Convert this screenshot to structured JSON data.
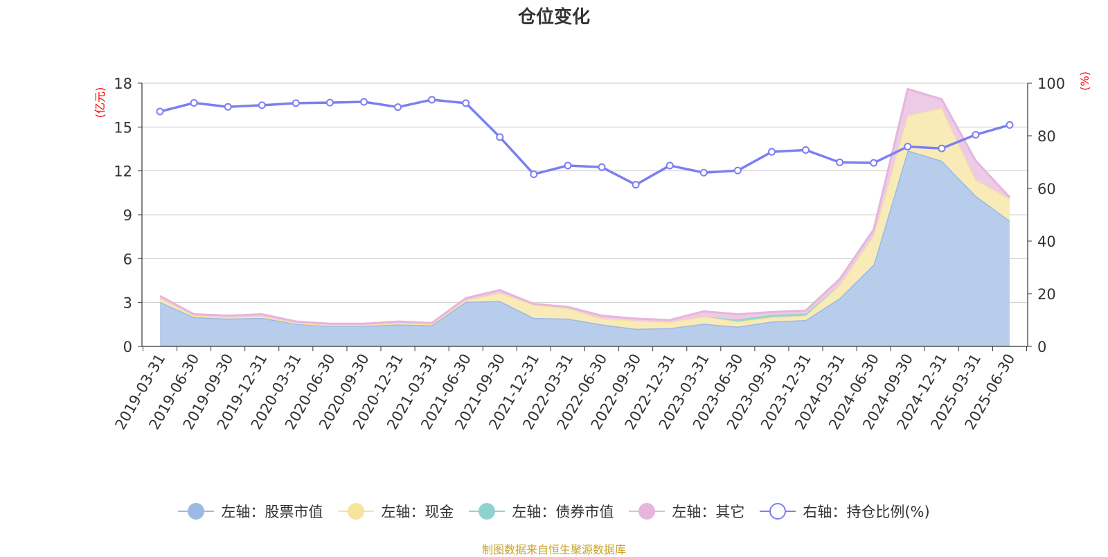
{
  "title": "仓位变化",
  "source_note": "制图数据来自恒生聚源数据库",
  "colors": {
    "stock": "#9cb9e3",
    "stock_fill": "#b7cdeb",
    "cash": "#f6e39c",
    "cash_fill": "#f8ebb8",
    "bond": "#8fd3d1",
    "other": "#e7b5dc",
    "other_fill": "#edcae6",
    "ratio": "#7b7ff0",
    "axis_label": "#ff0000",
    "grid": "#cccccc"
  },
  "legend": [
    {
      "label": "左轴：股票市值",
      "color": "#9cb9e3",
      "type": "area"
    },
    {
      "label": "左轴：现金",
      "color": "#f6e39c",
      "type": "area"
    },
    {
      "label": "左轴：债券市值",
      "color": "#8fd3d1",
      "type": "area"
    },
    {
      "label": "左轴：其它",
      "color": "#e7b5dc",
      "type": "area"
    },
    {
      "label": "右轴：持仓比例(%)",
      "color": "#7b7ff0",
      "type": "line"
    }
  ],
  "chart_data": {
    "type": "area",
    "title": "仓位变化",
    "ylabel_left": "(亿元)",
    "ylabel_right": "(%)",
    "ylim_left": [
      0,
      18
    ],
    "yticks_left": [
      0,
      3,
      6,
      9,
      12,
      15,
      18
    ],
    "ylim_right": [
      0,
      100
    ],
    "yticks_right": [
      0,
      20,
      40,
      60,
      80,
      100
    ],
    "grid": true,
    "legend_position": "bottom",
    "categories": [
      "2019-03-31",
      "2019-06-30",
      "2019-09-30",
      "2019-12-31",
      "2020-03-31",
      "2020-06-30",
      "2020-09-30",
      "2020-12-31",
      "2021-03-31",
      "2021-06-30",
      "2021-09-30",
      "2021-12-31",
      "2022-03-31",
      "2022-06-30",
      "2022-09-30",
      "2022-12-31",
      "2023-03-31",
      "2023-06-30",
      "2023-09-30",
      "2023-12-31",
      "2024-03-31",
      "2024-06-30",
      "2024-09-30",
      "2024-12-31",
      "2025-03-31",
      "2025-06-30"
    ],
    "series": [
      {
        "name": "左轴：股票市值",
        "axis": "left",
        "stacked": true,
        "values": [
          3.05,
          2.0,
          1.9,
          1.95,
          1.55,
          1.4,
          1.4,
          1.5,
          1.45,
          3.05,
          3.1,
          1.95,
          1.9,
          1.5,
          1.2,
          1.25,
          1.55,
          1.35,
          1.7,
          1.8,
          3.3,
          5.6,
          13.4,
          12.7,
          10.3,
          8.6
        ]
      },
      {
        "name": "左轴：现金",
        "axis": "left",
        "stacked": true,
        "values": [
          0.25,
          0.1,
          0.1,
          0.1,
          0.05,
          0.05,
          0.05,
          0.1,
          0.1,
          0.1,
          0.55,
          0.9,
          0.7,
          0.4,
          0.55,
          0.4,
          0.5,
          0.35,
          0.3,
          0.3,
          0.9,
          2.0,
          2.4,
          3.6,
          1.1,
          1.5
        ]
      },
      {
        "name": "左轴：债券市值",
        "axis": "left",
        "stacked": true,
        "values": [
          0,
          0,
          0,
          0,
          0,
          0,
          0,
          0,
          0,
          0,
          0,
          0,
          0,
          0,
          0,
          0,
          0,
          0.15,
          0.15,
          0.15,
          0,
          0,
          0,
          0,
          0,
          0
        ]
      },
      {
        "name": "左轴：其它",
        "axis": "left",
        "stacked": true,
        "values": [
          0.15,
          0.1,
          0.1,
          0.15,
          0.1,
          0.1,
          0.1,
          0.1,
          0.05,
          0.15,
          0.2,
          0.05,
          0.1,
          0.2,
          0.15,
          0.15,
          0.35,
          0.35,
          0.2,
          0.2,
          0.4,
          0.4,
          1.8,
          0.6,
          1.3,
          0.1
        ]
      },
      {
        "name": "右轴：持仓比例(%)",
        "axis": "right",
        "type": "line",
        "values": [
          89.2,
          92.5,
          91.0,
          91.6,
          92.4,
          92.6,
          92.9,
          90.9,
          93.7,
          92.4,
          79.5,
          65.4,
          68.7,
          68.1,
          61.4,
          68.7,
          66.0,
          66.8,
          73.9,
          74.6,
          69.9,
          69.7,
          75.9,
          75.2,
          80.4,
          84.1
        ]
      }
    ]
  }
}
